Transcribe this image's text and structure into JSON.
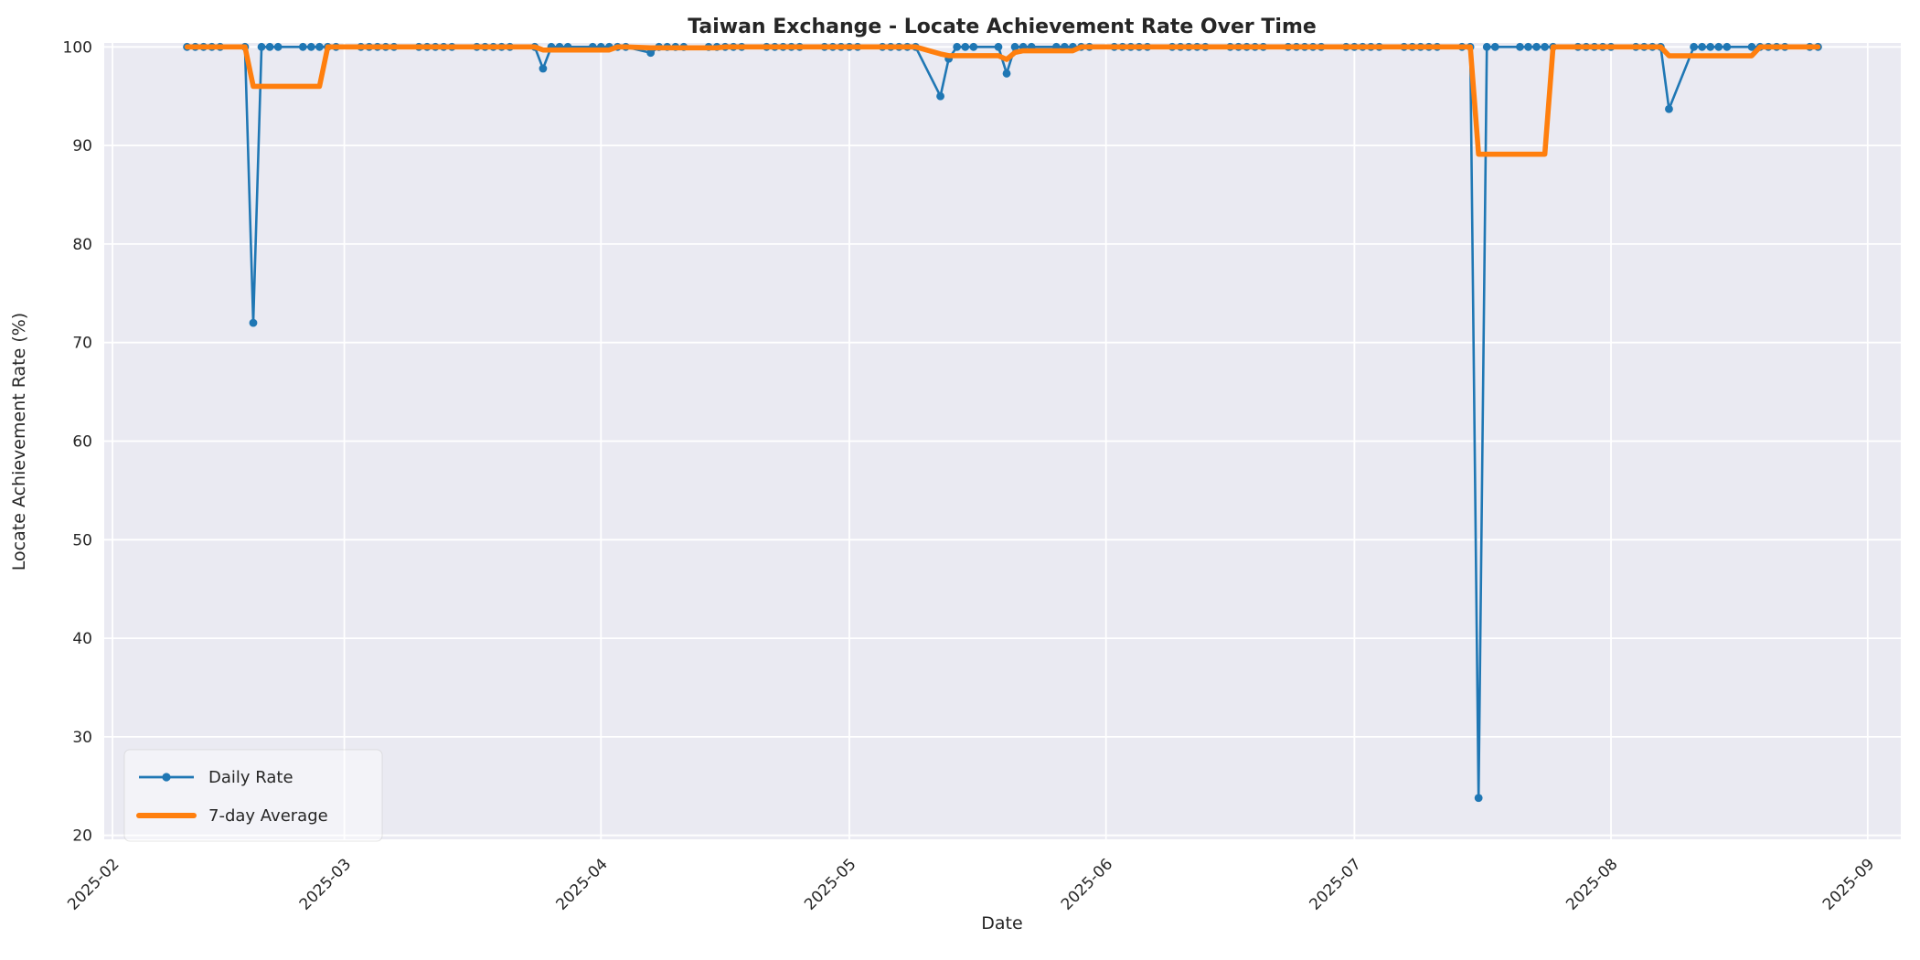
{
  "figure": {
    "background": "#ffffff"
  },
  "chart_data": {
    "type": "line",
    "title": "Taiwan Exchange - Locate Achievement Rate Over Time",
    "xlabel": "Date",
    "ylabel": "Locate Achievement Rate (%)",
    "plot_bg": "#eaeaf2",
    "grid_color": "#ffffff",
    "text_color": "#262626",
    "grid": true,
    "legend_position": "lower left",
    "xlim": [
      "2025-01-31",
      "2025-09-05"
    ],
    "ylim": [
      19.6,
      100.4
    ],
    "yticks": [
      20,
      30,
      40,
      50,
      60,
      70,
      80,
      90,
      100
    ],
    "xticks": [
      {
        "date": "2025-02-01",
        "label": "2025-02"
      },
      {
        "date": "2025-03-01",
        "label": "2025-03"
      },
      {
        "date": "2025-04-01",
        "label": "2025-04"
      },
      {
        "date": "2025-05-01",
        "label": "2025-05"
      },
      {
        "date": "2025-06-01",
        "label": "2025-06"
      },
      {
        "date": "2025-07-01",
        "label": "2025-07"
      },
      {
        "date": "2025-08-01",
        "label": "2025-08"
      },
      {
        "date": "2025-09-01",
        "label": "2025-09"
      }
    ],
    "x": [
      "2025-02-10",
      "2025-02-11",
      "2025-02-12",
      "2025-02-13",
      "2025-02-14",
      "2025-02-17",
      "2025-02-18",
      "2025-02-19",
      "2025-02-20",
      "2025-02-21",
      "2025-02-24",
      "2025-02-25",
      "2025-02-26",
      "2025-02-27",
      "2025-02-28",
      "2025-03-03",
      "2025-03-04",
      "2025-03-05",
      "2025-03-06",
      "2025-03-07",
      "2025-03-10",
      "2025-03-11",
      "2025-03-12",
      "2025-03-13",
      "2025-03-14",
      "2025-03-17",
      "2025-03-18",
      "2025-03-19",
      "2025-03-20",
      "2025-03-21",
      "2025-03-24",
      "2025-03-25",
      "2025-03-26",
      "2025-03-27",
      "2025-03-28",
      "2025-03-31",
      "2025-04-01",
      "2025-04-02",
      "2025-04-03",
      "2025-04-04",
      "2025-04-07",
      "2025-04-08",
      "2025-04-09",
      "2025-04-10",
      "2025-04-11",
      "2025-04-14",
      "2025-04-15",
      "2025-04-16",
      "2025-04-17",
      "2025-04-18",
      "2025-04-21",
      "2025-04-22",
      "2025-04-23",
      "2025-04-24",
      "2025-04-25",
      "2025-04-28",
      "2025-04-29",
      "2025-04-30",
      "2025-05-01",
      "2025-05-02",
      "2025-05-05",
      "2025-05-06",
      "2025-05-07",
      "2025-05-08",
      "2025-05-09",
      "2025-05-12",
      "2025-05-13",
      "2025-05-14",
      "2025-05-15",
      "2025-05-16",
      "2025-05-19",
      "2025-05-20",
      "2025-05-21",
      "2025-05-22",
      "2025-05-23",
      "2025-05-26",
      "2025-05-27",
      "2025-05-28",
      "2025-05-29",
      "2025-05-30",
      "2025-06-02",
      "2025-06-03",
      "2025-06-04",
      "2025-06-05",
      "2025-06-06",
      "2025-06-09",
      "2025-06-10",
      "2025-06-11",
      "2025-06-12",
      "2025-06-13",
      "2025-06-16",
      "2025-06-17",
      "2025-06-18",
      "2025-06-19",
      "2025-06-20",
      "2025-06-23",
      "2025-06-24",
      "2025-06-25",
      "2025-06-26",
      "2025-06-27",
      "2025-06-30",
      "2025-07-01",
      "2025-07-02",
      "2025-07-03",
      "2025-07-04",
      "2025-07-07",
      "2025-07-08",
      "2025-07-09",
      "2025-07-10",
      "2025-07-11",
      "2025-07-14",
      "2025-07-15",
      "2025-07-16",
      "2025-07-17",
      "2025-07-18",
      "2025-07-21",
      "2025-07-22",
      "2025-07-23",
      "2025-07-24",
      "2025-07-25",
      "2025-07-28",
      "2025-07-29",
      "2025-07-30",
      "2025-07-31",
      "2025-08-01",
      "2025-08-04",
      "2025-08-05",
      "2025-08-06",
      "2025-08-07",
      "2025-08-08",
      "2025-08-11",
      "2025-08-12",
      "2025-08-13",
      "2025-08-14",
      "2025-08-15",
      "2025-08-18",
      "2025-08-19",
      "2025-08-20",
      "2025-08-21",
      "2025-08-22",
      "2025-08-25",
      "2025-08-26"
    ],
    "series": [
      {
        "name": "Daily Rate",
        "color": "#1f77b4",
        "marker": "circle",
        "values": [
          100,
          100,
          100,
          100,
          100,
          100,
          72,
          100,
          100,
          100,
          100,
          100,
          100,
          100,
          100,
          100,
          100,
          100,
          100,
          100,
          100,
          100,
          100,
          100,
          100,
          100,
          100,
          100,
          100,
          100,
          100,
          97.8,
          100,
          100,
          100,
          100,
          100,
          100,
          100,
          100,
          99.4,
          100,
          100,
          100,
          100,
          100,
          100,
          100,
          100,
          100,
          100,
          100,
          100,
          100,
          100,
          100,
          100,
          100,
          100,
          100,
          100,
          100,
          100,
          100,
          100,
          95,
          98.8,
          100,
          100,
          100,
          100,
          97.3,
          100,
          100,
          100,
          100,
          100,
          100,
          100,
          100,
          100,
          100,
          100,
          100,
          100,
          100,
          100,
          100,
          100,
          100,
          100,
          100,
          100,
          100,
          100,
          100,
          100,
          100,
          100,
          100,
          100,
          100,
          100,
          100,
          100,
          100,
          100,
          100,
          100,
          100,
          100,
          100,
          23.8,
          100,
          100,
          100,
          100,
          100,
          100,
          100,
          100,
          100,
          100,
          100,
          100,
          100,
          100,
          100,
          100,
          93.7,
          100,
          100,
          100,
          100,
          100,
          100,
          100,
          100,
          100,
          100,
          100,
          100
        ]
      },
      {
        "name": "7-day Average",
        "color": "#ff7f0e",
        "marker": "none",
        "values": [
          100,
          100,
          100,
          100,
          100,
          100,
          96,
          96,
          96,
          96,
          96,
          96,
          96,
          100,
          100,
          100,
          100,
          100,
          100,
          100,
          100,
          100,
          100,
          100,
          100,
          100,
          100,
          100,
          100,
          100,
          100,
          99.69,
          99.69,
          99.69,
          99.69,
          99.69,
          99.69,
          99.69,
          100,
          100,
          99.91,
          99.91,
          99.91,
          99.91,
          99.91,
          99.91,
          99.91,
          100,
          100,
          100,
          100,
          100,
          100,
          100,
          100,
          100,
          100,
          100,
          100,
          100,
          100,
          100,
          100,
          100,
          100,
          99.29,
          99.11,
          99.11,
          99.11,
          99.11,
          99.11,
          98.73,
          99.44,
          99.61,
          99.61,
          99.61,
          99.61,
          99.61,
          100,
          100,
          100,
          100,
          100,
          100,
          100,
          100,
          100,
          100,
          100,
          100,
          100,
          100,
          100,
          100,
          100,
          100,
          100,
          100,
          100,
          100,
          100,
          100,
          100,
          100,
          100,
          100,
          100,
          100,
          100,
          100,
          100,
          100,
          89.11,
          89.11,
          89.11,
          89.11,
          89.11,
          89.11,
          89.11,
          100,
          100,
          100,
          100,
          100,
          100,
          100,
          100,
          100,
          100,
          99.1,
          99.1,
          99.1,
          99.1,
          99.1,
          99.1,
          99.1,
          100,
          100,
          100,
          100,
          100,
          100
        ]
      }
    ]
  }
}
